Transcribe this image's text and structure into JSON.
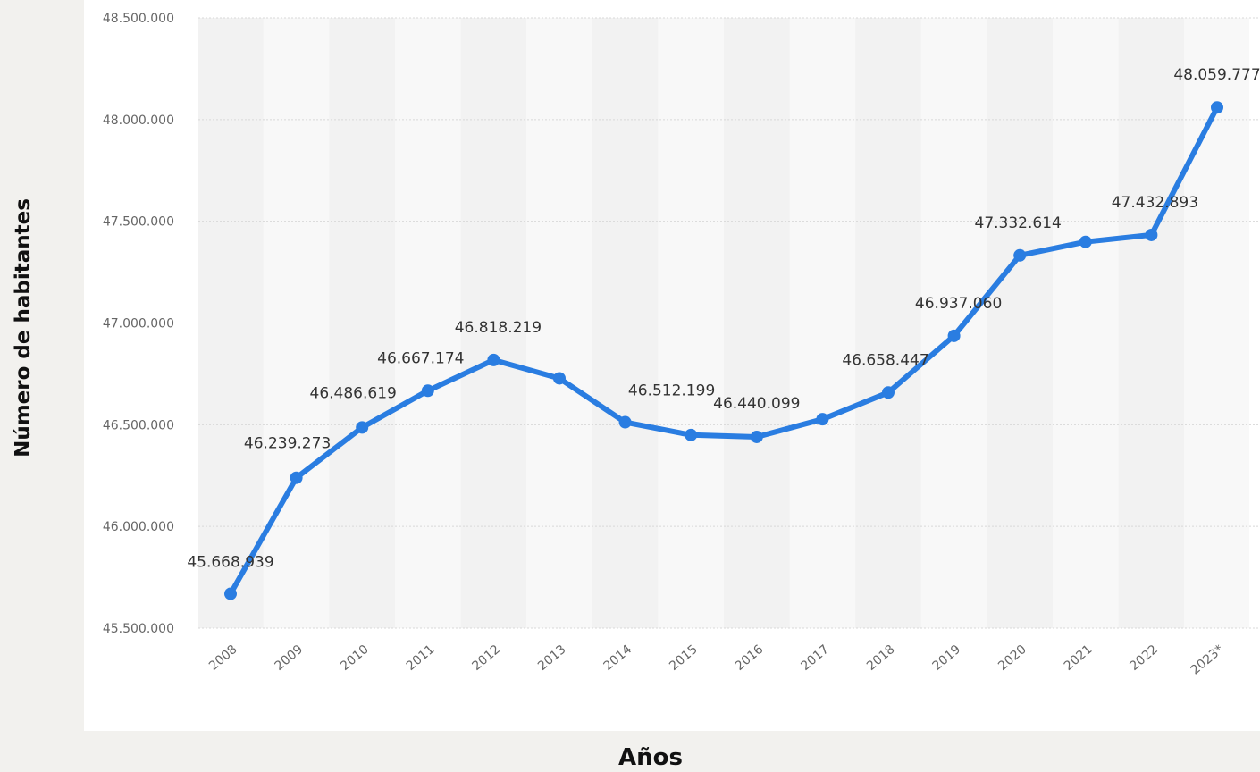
{
  "chart_data": {
    "type": "line",
    "xlabel": "Años",
    "ylabel": "Número de habitantes",
    "ylim": [
      45500000,
      48500000
    ],
    "yticks": [
      45500000,
      46000000,
      46500000,
      47000000,
      47500000,
      48000000,
      48500000
    ],
    "ytick_labels": [
      "45.500.000",
      "46.000.000",
      "46.500.000",
      "47.000.000",
      "47.500.000",
      "48.000.000",
      "48.500.000"
    ],
    "categories": [
      "2008",
      "2009",
      "2010",
      "2011",
      "2012",
      "2013",
      "2014",
      "2015",
      "2016",
      "2017",
      "2018",
      "2019",
      "2020",
      "2021",
      "2022",
      "2023*"
    ],
    "values": [
      45668939,
      46239273,
      46486619,
      46667174,
      46818219,
      46727890,
      46512199,
      46449565,
      46440099,
      46527039,
      46658447,
      46937060,
      47332614,
      47398695,
      47432893,
      48059777
    ],
    "data_labels": [
      {
        "index": 0,
        "text": "45.668.939"
      },
      {
        "index": 1,
        "text": "46.239.273"
      },
      {
        "index": 2,
        "text": "46.486.619"
      },
      {
        "index": 3,
        "text": "46.667.174"
      },
      {
        "index": 4,
        "text": "46.818.219"
      },
      {
        "index": 6,
        "text": "46.512.199"
      },
      {
        "index": 8,
        "text": "46.440.099"
      },
      {
        "index": 10,
        "text": "46.658.447"
      },
      {
        "index": 11,
        "text": "46.937.060"
      },
      {
        "index": 12,
        "text": "47.332.614"
      },
      {
        "index": 14,
        "text": "47.432.893"
      },
      {
        "index": 15,
        "text": "48.059.777"
      }
    ],
    "grid": true,
    "legend": "none",
    "line_color": "#2a7de1",
    "plot_background": "#f6f6f6",
    "band_colors": [
      "#f2f2f2",
      "#f8f8f8"
    ],
    "page_background": "#f2f1ee"
  }
}
